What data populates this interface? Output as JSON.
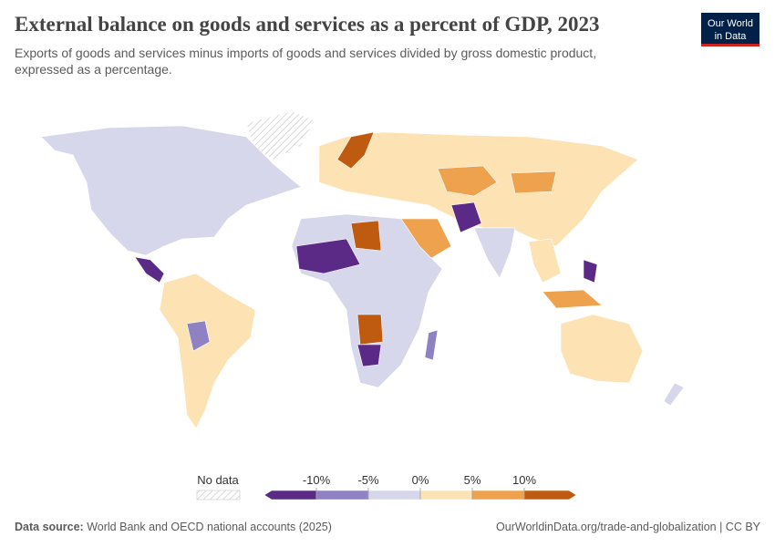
{
  "header": {
    "title": "External balance on goods and services as a percent of GDP, 2023",
    "subtitle_line1": "Exports of goods and services minus imports of goods and services divided by gross domestic product,",
    "subtitle_line2": "expressed as a percentage.",
    "logo_line1": "Our World",
    "logo_line2": "in Data"
  },
  "legend": {
    "no_data_label": "No data",
    "colors": [
      "#5b2a86",
      "#8f82c2",
      "#d6d7ea",
      "#fde2b4",
      "#eea24d",
      "#bf5b10"
    ],
    "ticks": [
      {
        "value": -10,
        "label": "-10%"
      },
      {
        "value": -5,
        "label": "-5%"
      },
      {
        "value": 0,
        "label": "0%"
      },
      {
        "value": 5,
        "label": "5%"
      },
      {
        "value": 10,
        "label": "10%"
      }
    ]
  },
  "footer": {
    "source_label": "Data source:",
    "source": "World Bank and OECD national accounts (2025)",
    "url": "OurWorldinData.org/trade-and-globalization | CC BY"
  }
}
